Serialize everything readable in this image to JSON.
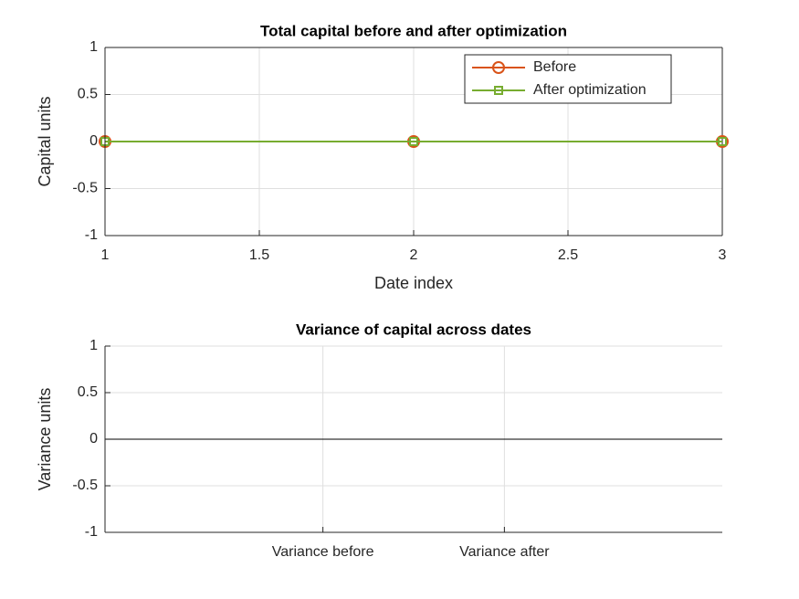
{
  "chart_data": [
    {
      "type": "line",
      "title": "Total capital before and after optimization",
      "xlabel": "Date index",
      "ylabel": "Capital units",
      "x": [
        1,
        2,
        3
      ],
      "series": [
        {
          "name": "Before",
          "color": "#d95319",
          "marker": "circle",
          "values": [
            0,
            0,
            0
          ]
        },
        {
          "name": "After optimization",
          "color": "#77ac30",
          "marker": "square",
          "values": [
            0,
            0,
            0
          ]
        }
      ],
      "xlim": [
        1,
        3
      ],
      "xticks": [
        1,
        1.5,
        2,
        2.5,
        3
      ],
      "ylim": [
        -1,
        1
      ],
      "yticks": [
        -1,
        -0.5,
        0,
        0.5,
        1
      ],
      "grid": true,
      "legend": "northeast"
    },
    {
      "type": "bar",
      "title": "Variance of capital across dates",
      "ylabel": "Variance units",
      "categories": [
        "Variance before",
        "Variance after"
      ],
      "values": [
        0,
        0
      ],
      "color": "#0072bd",
      "ylim": [
        -1,
        1
      ],
      "yticks": [
        -1,
        -0.5,
        0,
        0.5,
        1
      ],
      "grid": true
    }
  ]
}
